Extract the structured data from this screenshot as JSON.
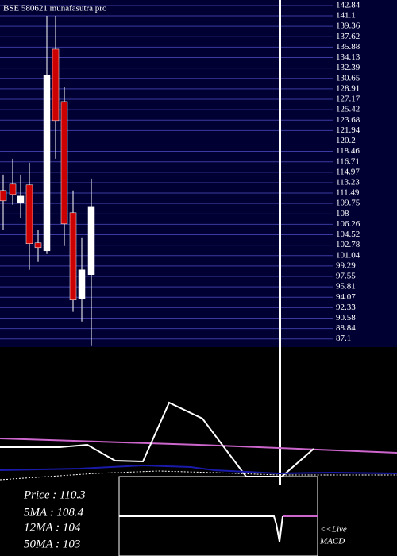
{
  "chart_data": {
    "type": "candlestick",
    "title": "BSE 580621 munafasutra.pro",
    "open": [
      111.92,
      112.98,
      109.79,
      112.85,
      103.16,
      101.83,
      135.54,
      126.78,
      108.2,
      93.74,
      97.85
    ],
    "high": [
      114.57,
      117.23,
      114.57,
      116.56,
      105.28,
      141.11,
      141.11,
      129.17,
      111.92,
      103.96,
      113.91
    ],
    "low": [
      105.28,
      109.53,
      107.27,
      98.65,
      99.97,
      101.3,
      117.23,
      102.63,
      91.62,
      90.02,
      86.04
    ],
    "close": [
      110.19,
      111.25,
      110.99,
      103.03,
      102.36,
      131.16,
      123.6,
      106.34,
      93.6,
      98.65,
      109.26
    ],
    "up_color": "#ffffff",
    "down_color": "#cc0000",
    "ylim": [
      86,
      143.1
    ],
    "yticks": [
      142.84,
      141.1,
      139.36,
      137.62,
      135.88,
      134.13,
      132.39,
      130.65,
      128.91,
      127.17,
      125.42,
      123.68,
      121.94,
      120.2,
      118.46,
      116.71,
      114.97,
      113.23,
      111.49,
      109.75,
      108,
      106.26,
      104.52,
      102.78,
      101.04,
      99.29,
      97.55,
      95.81,
      94.07,
      92.33,
      90.58,
      88.84,
      87.1
    ],
    "grid": true,
    "info": [
      "Price  : 110.3",
      "5MA : 108.4",
      "12MA : 104",
      "50MA : 103"
    ],
    "macd_label": [
      "<<Live",
      "MACD"
    ]
  }
}
